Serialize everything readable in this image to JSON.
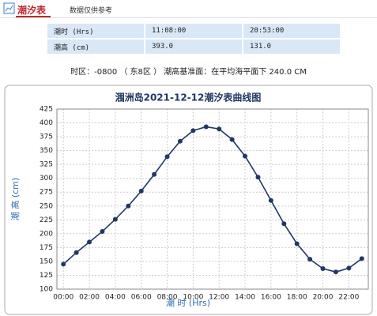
{
  "header": {
    "title": "潮汐表",
    "subtitle": "数据仅供参考"
  },
  "table": {
    "rows": [
      [
        "潮时 (Hrs)",
        "11:08:00",
        "20:53:00"
      ],
      [
        "潮高 (cm)",
        "393.0",
        "131.0"
      ]
    ]
  },
  "note": "时区：-0800 （ 东8区 ） 潮高基准面：在平均海平面下 240.0 CM",
  "chart_data": {
    "type": "line",
    "title": "涠洲岛2021-12-12潮汐表曲线图",
    "x_label": "潮 时 (Hrs)",
    "y_label": "潮 高 (cm)",
    "categories": [
      "00:00",
      null,
      "02:00",
      null,
      "04:00",
      null,
      "06:00",
      null,
      "08:00",
      null,
      "10:00",
      null,
      "12:00",
      null,
      "14:00",
      null,
      "16:00",
      null,
      "18:00",
      null,
      "20:00",
      null,
      "22:00",
      null
    ],
    "values": [
      145,
      166,
      185,
      204,
      226,
      250,
      277,
      307,
      339,
      367,
      386,
      393,
      389,
      370,
      340,
      302,
      260,
      218,
      182,
      154,
      137,
      131,
      138,
      155
    ],
    "color": "#1f3864",
    "ylim": [
      100,
      425
    ],
    "yticks": [
      100,
      125,
      150,
      175,
      200,
      225,
      250,
      275,
      300,
      325,
      350,
      375,
      400,
      425
    ],
    "grid": true
  }
}
